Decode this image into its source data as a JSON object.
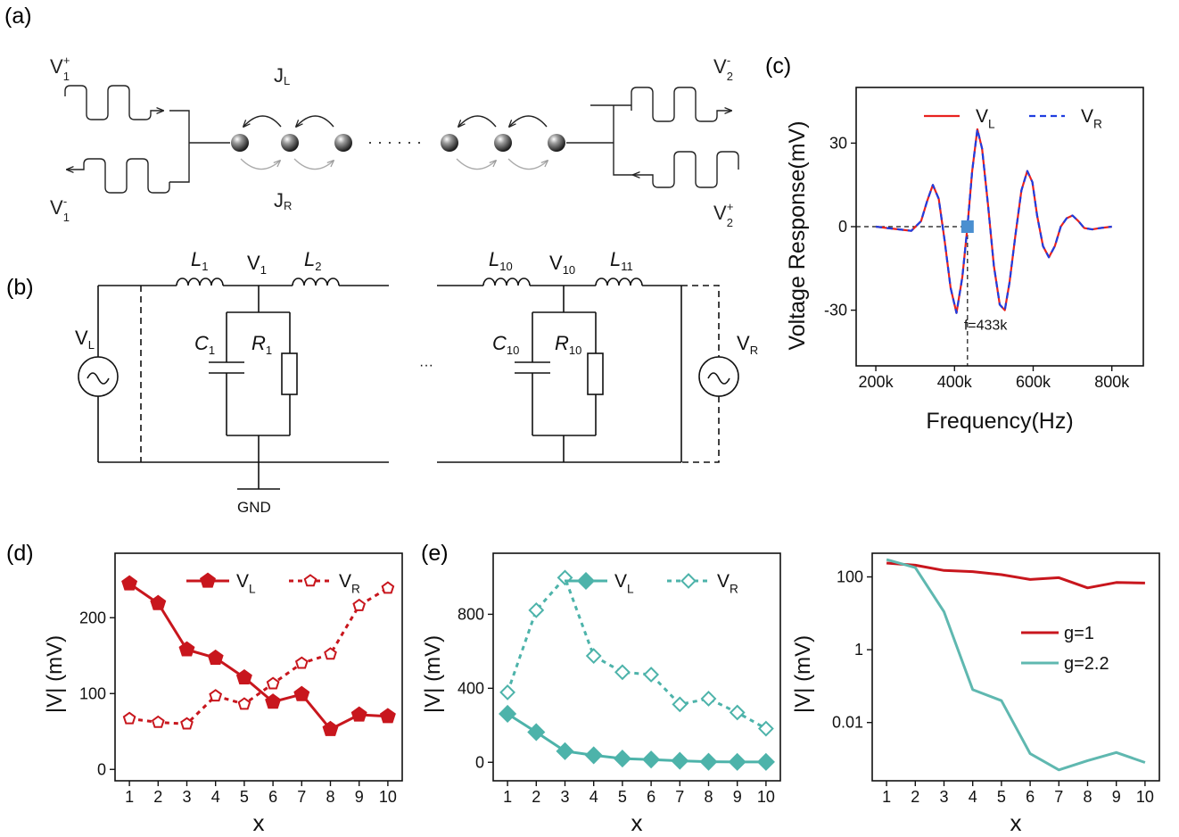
{
  "panels": {
    "a": {
      "label": "(a)"
    },
    "b": {
      "label": "(b)"
    },
    "c": {
      "label": "(c)"
    },
    "d": {
      "label": "(d)"
    },
    "e": {
      "label": "(e)"
    }
  },
  "schematic_a": {
    "v1p": "V",
    "v1p_sub": "1",
    "v1p_sup": "+",
    "v1m": "V",
    "v1m_sub": "1",
    "v1m_sup": "-",
    "v2m": "V",
    "v2m_sub": "2",
    "v2m_sup": "-",
    "v2p": "V",
    "v2p_sub": "2",
    "v2p_sup": "+",
    "jl": "J",
    "jl_sub": "L",
    "jr": "J",
    "jr_sub": "R",
    "dots": "· · · · · ·"
  },
  "circuit_b": {
    "L1": "L",
    "L1_sub": "1",
    "L2": "L",
    "L2_sub": "2",
    "L10": "L",
    "L10_sub": "10",
    "L11": "L",
    "L11_sub": "11",
    "V1": "V",
    "V1_sub": "1",
    "V10": "V",
    "V10_sub": "10",
    "C1": "C",
    "C1_sub": "1",
    "R1": "R",
    "R1_sub": "1",
    "C10": "C",
    "C10_sub": "10",
    "R10": "R",
    "R10_sub": "10",
    "VL": "V",
    "VL_sub": "L",
    "VR": "V",
    "VR_sub": "R",
    "ellipsis": "···",
    "gnd": "GND"
  },
  "chart_data": [
    {
      "id": "c",
      "type": "line",
      "xlabel": "Frequency(Hz)",
      "ylabel": "Voltage  Response(mV)",
      "xlim": [
        150000,
        880000
      ],
      "ylim": [
        -50,
        50
      ],
      "xticks": [
        200000,
        400000,
        600000,
        800000
      ],
      "xtick_labels": [
        "200k",
        "400k",
        "600k",
        "800k"
      ],
      "yticks": [
        -30,
        0,
        30
      ],
      "ytick_labels": [
        "-30",
        "0",
        "30"
      ],
      "grid": false,
      "legend": "top",
      "annotation": "f=433k",
      "marker_point": {
        "x": 433000,
        "y": 0,
        "color": "#4a8fd0"
      },
      "series": [
        {
          "name": "V",
          "name_sub": "L",
          "color": "#e8221f",
          "style": "solid",
          "x": [
            200000,
            230000,
            260000,
            290000,
            315000,
            330000,
            345000,
            360000,
            375000,
            390000,
            405000,
            420000,
            433000,
            445000,
            458000,
            470000,
            485000,
            500000,
            515000,
            528000,
            540000,
            555000,
            570000,
            585000,
            598000,
            610000,
            625000,
            640000,
            655000,
            670000,
            685000,
            700000,
            715000,
            730000,
            750000,
            770000,
            800000
          ],
          "y": [
            0,
            -0.5,
            -1,
            -1.5,
            2,
            9,
            15,
            10,
            -5,
            -22,
            -31,
            -18,
            0,
            20,
            35,
            28,
            8,
            -14,
            -28,
            -30,
            -20,
            -3,
            13,
            20,
            16,
            4,
            -7,
            -11,
            -7,
            0,
            3,
            4,
            2,
            -0.5,
            -1,
            -0.5,
            0
          ]
        },
        {
          "name": "V",
          "name_sub": "R",
          "color": "#1f3de0",
          "style": "dashed",
          "x": [
            200000,
            230000,
            260000,
            290000,
            315000,
            330000,
            345000,
            360000,
            375000,
            390000,
            405000,
            420000,
            433000,
            445000,
            458000,
            470000,
            485000,
            500000,
            515000,
            528000,
            540000,
            555000,
            570000,
            585000,
            598000,
            610000,
            625000,
            640000,
            655000,
            670000,
            685000,
            700000,
            715000,
            730000,
            750000,
            770000,
            800000
          ],
          "y": [
            0,
            -0.5,
            -1,
            -1.5,
            2,
            9,
            15,
            10,
            -5,
            -22,
            -31,
            -18,
            0,
            20,
            35,
            28,
            8,
            -14,
            -28,
            -30,
            -20,
            -3,
            13,
            20,
            16,
            4,
            -7,
            -11,
            -7,
            0,
            3,
            4,
            2,
            -0.5,
            -1,
            -0.5,
            0
          ]
        }
      ]
    },
    {
      "id": "d",
      "type": "line",
      "xlabel": "x",
      "ylabel": "|V|    (mV)",
      "xlim": [
        0.5,
        10.5
      ],
      "ylim": [
        -15,
        285
      ],
      "xticks": [
        1,
        2,
        3,
        4,
        5,
        6,
        7,
        8,
        9,
        10
      ],
      "yticks": [
        0,
        100,
        200
      ],
      "grid": false,
      "legend": "top",
      "categories": [
        1,
        2,
        3,
        4,
        5,
        6,
        7,
        8,
        9,
        10
      ],
      "series": [
        {
          "name": "V",
          "name_sub": "L",
          "color": "#c8161d",
          "style": "solid",
          "marker": "pentagon-filled",
          "values": [
            245,
            219,
            158,
            147,
            121,
            89,
            99,
            53,
            72,
            70
          ]
        },
        {
          "name": "V",
          "name_sub": "R",
          "color": "#c8161d",
          "style": "dashed",
          "marker": "pentagon-open",
          "values": [
            67,
            62,
            60,
            97,
            86,
            113,
            140,
            152,
            216,
            239
          ]
        }
      ]
    },
    {
      "id": "e",
      "type": "line",
      "xlabel": "x",
      "ylabel": "|V|    (mV)",
      "xlim": [
        0.5,
        10.5
      ],
      "ylim": [
        -100,
        1130
      ],
      "xticks": [
        1,
        2,
        3,
        4,
        5,
        6,
        7,
        8,
        9,
        10
      ],
      "yticks": [
        0,
        400,
        800
      ],
      "grid": false,
      "legend": "top",
      "categories": [
        1,
        2,
        3,
        4,
        5,
        6,
        7,
        8,
        9,
        10
      ],
      "series": [
        {
          "name": "V",
          "name_sub": "L",
          "color": "#4db3aa",
          "style": "solid",
          "marker": "diamond-filled",
          "values": [
            262,
            163,
            60,
            38,
            20,
            15,
            8,
            3,
            2,
            2
          ]
        },
        {
          "name": "V",
          "name_sub": "R",
          "color": "#4db3aa",
          "style": "dashed",
          "marker": "diamond-open",
          "values": [
            378,
            822,
            998,
            575,
            487,
            474,
            313,
            344,
            269,
            182
          ]
        }
      ]
    },
    {
      "id": "f",
      "type": "line",
      "xlabel": "x",
      "ylabel": "|V|    (mV)",
      "xlim": [
        0.5,
        10.5
      ],
      "yscale": "log",
      "ylim_log10": [
        -3.6,
        2.65
      ],
      "xticks": [
        1,
        2,
        3,
        4,
        5,
        6,
        7,
        8,
        9,
        10
      ],
      "yticks": [
        0.01,
        1,
        100
      ],
      "ytick_labels": [
        "0.01",
        "1",
        "100"
      ],
      "grid": false,
      "legend": "center-right",
      "categories": [
        1,
        2,
        3,
        4,
        5,
        6,
        7,
        8,
        9,
        10
      ],
      "series": [
        {
          "name": "g=1",
          "color": "#c8161d",
          "style": "solid",
          "values": [
            240,
            210,
            150,
            140,
            115,
            85,
            95,
            50,
            70,
            68
          ]
        },
        {
          "name": "g=2.2",
          "color": "#5fb8b0",
          "style": "solid",
          "values": [
            300,
            180,
            11,
            0.08,
            0.04,
            0.0014,
            0.0005,
            0.0009,
            0.0015,
            0.0008
          ]
        }
      ]
    }
  ]
}
